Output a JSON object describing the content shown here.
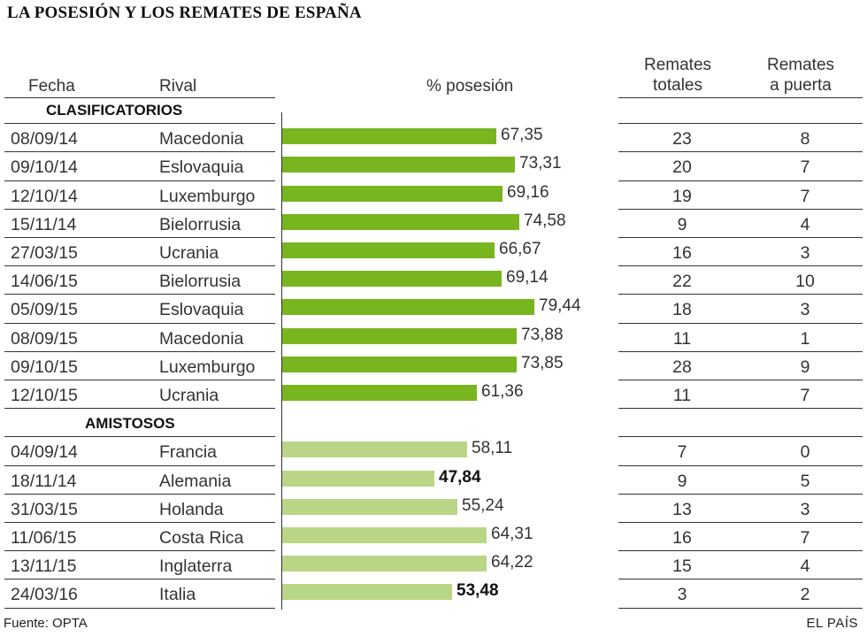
{
  "chart_data": {
    "type": "table",
    "title": "LA POSESIÓN Y LOS REMATES DE ESPAÑA",
    "columns": {
      "fecha": "Fecha",
      "rival": "Rival",
      "posesion": "% posesión",
      "remates_totales_1": "Remates",
      "remates_totales_2": "totales",
      "remates_puerta_1": "Remates",
      "remates_puerta_2": "a puerta"
    },
    "bar_max": 100,
    "colors": {
      "clasificatorios": "#78b51f",
      "amistosos": "#b9d686"
    },
    "sections": [
      {
        "name": "CLASIFICATORIOS",
        "color_key": "clasificatorios",
        "rows": [
          {
            "fecha": "08/09/14",
            "rival": "Macedonia",
            "posesion": 67.35,
            "posesion_label": "67,35",
            "bold": false,
            "totales": "23",
            "puerta": "8"
          },
          {
            "fecha": "09/10/14",
            "rival": "Eslovaquia",
            "posesion": 73.31,
            "posesion_label": "73,31",
            "bold": false,
            "totales": "20",
            "puerta": "7"
          },
          {
            "fecha": "12/10/14",
            "rival": "Luxemburgo",
            "posesion": 69.16,
            "posesion_label": "69,16",
            "bold": false,
            "totales": "19",
            "puerta": "7"
          },
          {
            "fecha": "15/11/14",
            "rival": "Bielorrusia",
            "posesion": 74.58,
            "posesion_label": "74,58",
            "bold": false,
            "totales": "9",
            "puerta": "4"
          },
          {
            "fecha": "27/03/15",
            "rival": "Ucrania",
            "posesion": 66.67,
            "posesion_label": "66,67",
            "bold": false,
            "totales": "16",
            "puerta": "3"
          },
          {
            "fecha": "14/06/15",
            "rival": "Bielorrusia",
            "posesion": 69.14,
            "posesion_label": "69,14",
            "bold": false,
            "totales": "22",
            "puerta": "10"
          },
          {
            "fecha": "05/09/15",
            "rival": "Eslovaquia",
            "posesion": 79.44,
            "posesion_label": "79,44",
            "bold": false,
            "totales": "18",
            "puerta": "3"
          },
          {
            "fecha": "08/09/15",
            "rival": "Macedonia",
            "posesion": 73.88,
            "posesion_label": "73,88",
            "bold": false,
            "totales": "11",
            "puerta": "1"
          },
          {
            "fecha": "09/10/15",
            "rival": "Luxemburgo",
            "posesion": 73.85,
            "posesion_label": "73,85",
            "bold": false,
            "totales": "28",
            "puerta": "9"
          },
          {
            "fecha": "12/10/15",
            "rival": "Ucrania",
            "posesion": 61.36,
            "posesion_label": "61,36",
            "bold": false,
            "totales": "11",
            "puerta": "7"
          }
        ]
      },
      {
        "name": "AMISTOSOS",
        "color_key": "amistosos",
        "rows": [
          {
            "fecha": "04/09/14",
            "rival": "Francia",
            "posesion": 58.11,
            "posesion_label": "58,11",
            "bold": false,
            "totales": "7",
            "puerta": "0"
          },
          {
            "fecha": "18/11/14",
            "rival": "Alemania",
            "posesion": 47.84,
            "posesion_label": "47,84",
            "bold": true,
            "totales": "9",
            "puerta": "5"
          },
          {
            "fecha": "31/03/15",
            "rival": "Holanda",
            "posesion": 55.24,
            "posesion_label": "55,24",
            "bold": false,
            "totales": "13",
            "puerta": "3"
          },
          {
            "fecha": "11/06/15",
            "rival": "Costa Rica",
            "posesion": 64.31,
            "posesion_label": "64,31",
            "bold": false,
            "totales": "16",
            "puerta": "7"
          },
          {
            "fecha": "13/11/15",
            "rival": "Inglaterra",
            "posesion": 64.22,
            "posesion_label": "64,22",
            "bold": false,
            "totales": "15",
            "puerta": "4"
          },
          {
            "fecha": "24/03/16",
            "rival": "Italia",
            "posesion": 53.48,
            "posesion_label": "53,48",
            "bold": true,
            "totales": "3",
            "puerta": "2"
          }
        ]
      }
    ]
  },
  "footer": {
    "source": "Fuente: OPTA",
    "brand": "EL PAÍS"
  }
}
